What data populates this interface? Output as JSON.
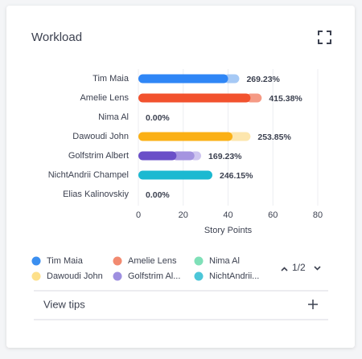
{
  "title": "Workload",
  "chart_data": {
    "type": "stacked-hbar",
    "categories": [
      "Tim Maia",
      "Amelie Lens",
      "Nima Al",
      "Dawoudi John",
      "Golfstrim Albert",
      "NichtAndrii Champel",
      "Elias Kalinovskiy"
    ],
    "segments": [
      [
        {
          "value": 40,
          "color": "#2f86f6"
        },
        {
          "value": 5,
          "color": "#a6c9f5"
        }
      ],
      [
        {
          "value": 50,
          "color": "#f2522e"
        },
        {
          "value": 5,
          "color": "#f59a85"
        }
      ],
      [],
      [
        {
          "value": 42,
          "color": "#fbb015"
        },
        {
          "value": 8,
          "color": "#fde6ad"
        }
      ],
      [
        {
          "value": 17,
          "color": "#6a4fc8"
        },
        {
          "value": 8,
          "color": "#a594e0"
        },
        {
          "value": 3,
          "color": "#cfc6f0"
        }
      ],
      [
        {
          "value": 33,
          "color": "#1cb9d1"
        }
      ],
      []
    ],
    "percent_labels": [
      "269.23%",
      "415.38%",
      "0.00%",
      "253.85%",
      "169.23%",
      "246.15%",
      "0.00%"
    ],
    "xlim": [
      0,
      80
    ],
    "xticks": [
      0,
      20,
      40,
      60,
      80
    ],
    "xlabel": "Story Points",
    "grid": true,
    "legend": [
      {
        "label": "Tim Maia",
        "color": "#3b8ff0"
      },
      {
        "label": "Amelie Lens",
        "color": "#f28a70"
      },
      {
        "label": "Nima Al",
        "color": "#7fe0b8"
      },
      {
        "label": "Dawoudi John",
        "color": "#fde08a"
      },
      {
        "label": "Golfstrim Al...",
        "color": "#9e8fe0"
      },
      {
        "label": "NichtAndrii...",
        "color": "#4cc6d8"
      }
    ],
    "page": "1/2"
  },
  "tips": "View tips"
}
